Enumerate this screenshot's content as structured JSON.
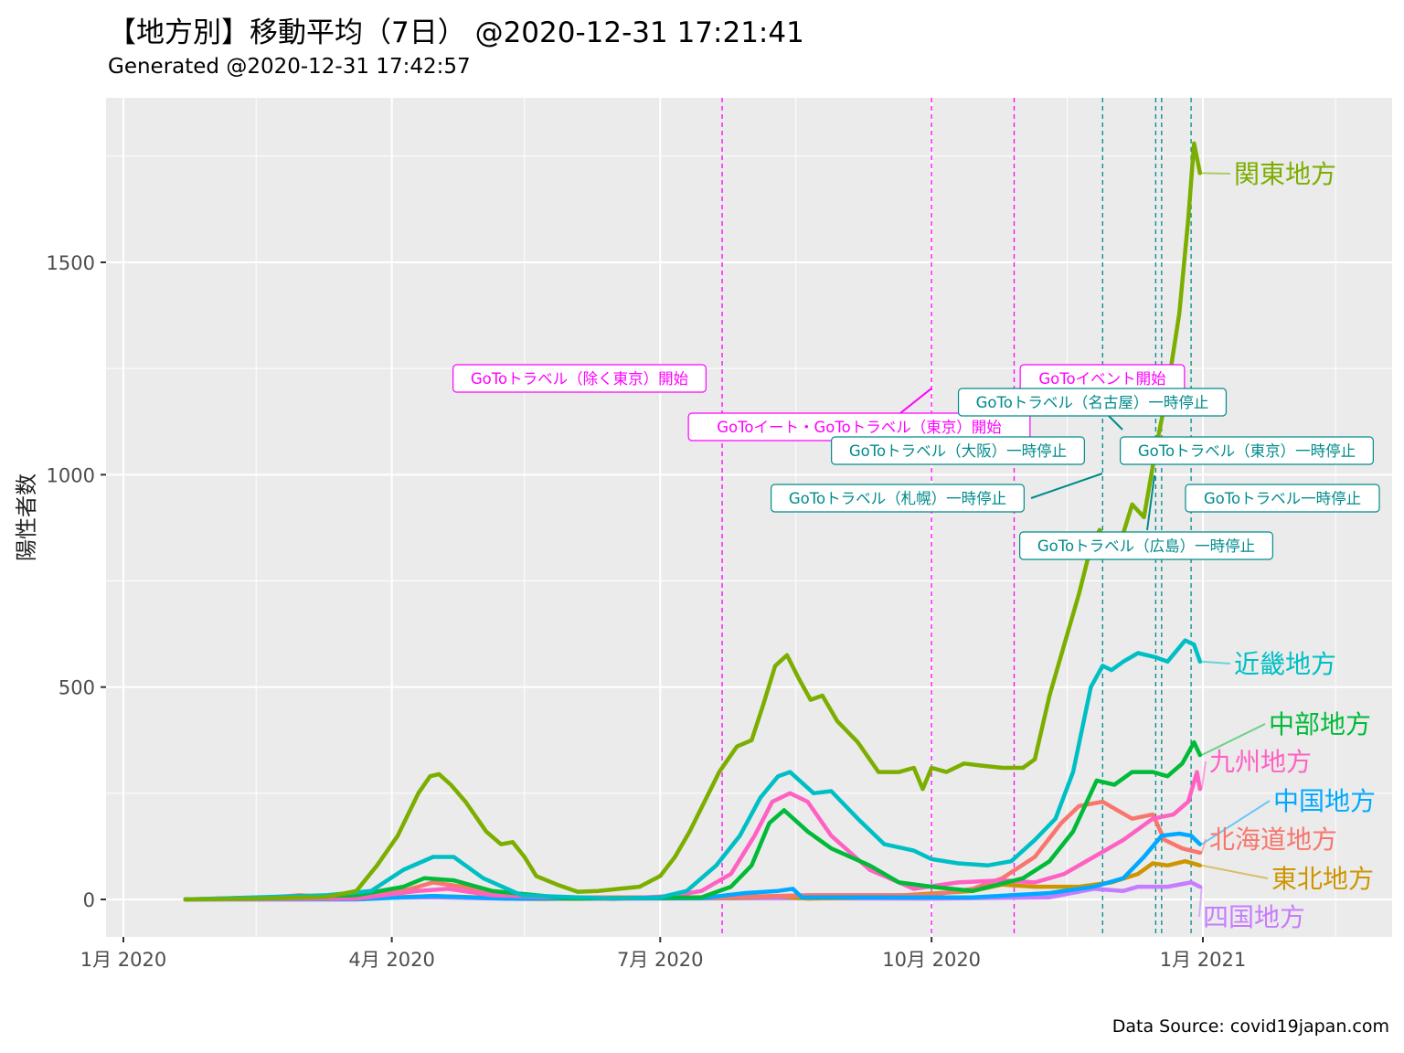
{
  "title": "【地方別】移動平均（7日） @2020-12-31 17:21:41",
  "subtitle": "Generated @2020-12-31 17:42:57",
  "caption": "Data Source: covid19japan.com",
  "chart_data": {
    "type": "line",
    "ylabel": "陽性者数",
    "xlabel": "",
    "ylim": [
      -90,
      1880
    ],
    "x_ticks": [
      {
        "date": "2020-01-01",
        "label": "1月 2020"
      },
      {
        "date": "2020-04-01",
        "label": "4月 2020"
      },
      {
        "date": "2020-07-01",
        "label": "7月 2020"
      },
      {
        "date": "2020-10-01",
        "label": "10月 2020"
      },
      {
        "date": "2021-01-01",
        "label": "1月 2021"
      }
    ],
    "y_ticks": [
      0,
      500,
      1000,
      1500
    ],
    "grid": true,
    "legend": "direct labels at line ends",
    "series": [
      {
        "name": "関東地方",
        "color": "#7CAE00",
        "points": [
          [
            "2020-01-22",
            0
          ],
          [
            "2020-02-15",
            2
          ],
          [
            "2020-03-10",
            6
          ],
          [
            "2020-03-20",
            20
          ],
          [
            "2020-03-27",
            80
          ],
          [
            "2020-04-03",
            150
          ],
          [
            "2020-04-10",
            250
          ],
          [
            "2020-04-14",
            290
          ],
          [
            "2020-04-17",
            295
          ],
          [
            "2020-04-21",
            270
          ],
          [
            "2020-04-26",
            230
          ],
          [
            "2020-05-03",
            160
          ],
          [
            "2020-05-08",
            130
          ],
          [
            "2020-05-12",
            135
          ],
          [
            "2020-05-16",
            100
          ],
          [
            "2020-05-20",
            55
          ],
          [
            "2020-05-27",
            35
          ],
          [
            "2020-06-03",
            18
          ],
          [
            "2020-06-10",
            20
          ],
          [
            "2020-06-17",
            25
          ],
          [
            "2020-06-24",
            30
          ],
          [
            "2020-07-01",
            55
          ],
          [
            "2020-07-06",
            100
          ],
          [
            "2020-07-11",
            160
          ],
          [
            "2020-07-16",
            230
          ],
          [
            "2020-07-21",
            300
          ],
          [
            "2020-07-27",
            360
          ],
          [
            "2020-08-01",
            375
          ],
          [
            "2020-08-05",
            460
          ],
          [
            "2020-08-09",
            550
          ],
          [
            "2020-08-13",
            575
          ],
          [
            "2020-08-17",
            520
          ],
          [
            "2020-08-21",
            470
          ],
          [
            "2020-08-25",
            480
          ],
          [
            "2020-08-30",
            420
          ],
          [
            "2020-09-06",
            370
          ],
          [
            "2020-09-13",
            300
          ],
          [
            "2020-09-20",
            300
          ],
          [
            "2020-09-25",
            310
          ],
          [
            "2020-09-28",
            260
          ],
          [
            "2020-10-01",
            310
          ],
          [
            "2020-10-06",
            300
          ],
          [
            "2020-10-12",
            320
          ],
          [
            "2020-10-18",
            315
          ],
          [
            "2020-10-25",
            310
          ],
          [
            "2020-11-01",
            310
          ],
          [
            "2020-11-05",
            330
          ],
          [
            "2020-11-10",
            480
          ],
          [
            "2020-11-15",
            600
          ],
          [
            "2020-11-20",
            720
          ],
          [
            "2020-11-24",
            830
          ],
          [
            "2020-11-27",
            870
          ],
          [
            "2020-11-30",
            820
          ],
          [
            "2020-12-04",
            840
          ],
          [
            "2020-12-08",
            930
          ],
          [
            "2020-12-12",
            900
          ],
          [
            "2020-12-16",
            1060
          ],
          [
            "2020-12-20",
            1200
          ],
          [
            "2020-12-24",
            1380
          ],
          [
            "2020-12-27",
            1600
          ],
          [
            "2020-12-29",
            1780
          ],
          [
            "2020-12-31",
            1710
          ]
        ]
      },
      {
        "name": "近畿地方",
        "color": "#00BFC4",
        "points": [
          [
            "2020-01-22",
            0
          ],
          [
            "2020-03-10",
            10
          ],
          [
            "2020-03-25",
            20
          ],
          [
            "2020-04-05",
            70
          ],
          [
            "2020-04-15",
            100
          ],
          [
            "2020-04-22",
            100
          ],
          [
            "2020-05-02",
            50
          ],
          [
            "2020-05-15",
            10
          ],
          [
            "2020-06-15",
            2
          ],
          [
            "2020-07-01",
            5
          ],
          [
            "2020-07-10",
            20
          ],
          [
            "2020-07-20",
            80
          ],
          [
            "2020-07-28",
            150
          ],
          [
            "2020-08-04",
            240
          ],
          [
            "2020-08-10",
            290
          ],
          [
            "2020-08-14",
            300
          ],
          [
            "2020-08-22",
            250
          ],
          [
            "2020-08-28",
            255
          ],
          [
            "2020-09-06",
            190
          ],
          [
            "2020-09-15",
            130
          ],
          [
            "2020-09-25",
            115
          ],
          [
            "2020-10-01",
            95
          ],
          [
            "2020-10-10",
            85
          ],
          [
            "2020-10-20",
            80
          ],
          [
            "2020-10-28",
            90
          ],
          [
            "2020-11-05",
            140
          ],
          [
            "2020-11-12",
            190
          ],
          [
            "2020-11-18",
            300
          ],
          [
            "2020-11-24",
            500
          ],
          [
            "2020-11-28",
            550
          ],
          [
            "2020-12-01",
            540
          ],
          [
            "2020-12-05",
            560
          ],
          [
            "2020-12-10",
            580
          ],
          [
            "2020-12-16",
            570
          ],
          [
            "2020-12-20",
            560
          ],
          [
            "2020-12-26",
            610
          ],
          [
            "2020-12-29",
            600
          ],
          [
            "2020-12-31",
            560
          ]
        ]
      },
      {
        "name": "中部地方",
        "color": "#00BA38",
        "points": [
          [
            "2020-01-22",
            0
          ],
          [
            "2020-03-20",
            10
          ],
          [
            "2020-04-05",
            30
          ],
          [
            "2020-04-12",
            50
          ],
          [
            "2020-04-22",
            45
          ],
          [
            "2020-05-05",
            20
          ],
          [
            "2020-06-01",
            2
          ],
          [
            "2020-07-15",
            5
          ],
          [
            "2020-07-25",
            30
          ],
          [
            "2020-08-01",
            80
          ],
          [
            "2020-08-07",
            180
          ],
          [
            "2020-08-12",
            210
          ],
          [
            "2020-08-20",
            160
          ],
          [
            "2020-08-28",
            120
          ],
          [
            "2020-09-10",
            80
          ],
          [
            "2020-09-20",
            40
          ],
          [
            "2020-10-01",
            30
          ],
          [
            "2020-10-15",
            20
          ],
          [
            "2020-11-01",
            50
          ],
          [
            "2020-11-10",
            90
          ],
          [
            "2020-11-18",
            160
          ],
          [
            "2020-11-26",
            280
          ],
          [
            "2020-12-02",
            270
          ],
          [
            "2020-12-08",
            300
          ],
          [
            "2020-12-15",
            300
          ],
          [
            "2020-12-20",
            290
          ],
          [
            "2020-12-25",
            320
          ],
          [
            "2020-12-29",
            370
          ],
          [
            "2020-12-31",
            340
          ]
        ]
      },
      {
        "name": "九州地方",
        "color": "#FF61C3",
        "points": [
          [
            "2020-01-22",
            0
          ],
          [
            "2020-03-20",
            2
          ],
          [
            "2020-04-10",
            20
          ],
          [
            "2020-04-20",
            25
          ],
          [
            "2020-05-05",
            10
          ],
          [
            "2020-06-15",
            1
          ],
          [
            "2020-07-05",
            8
          ],
          [
            "2020-07-15",
            20
          ],
          [
            "2020-07-25",
            60
          ],
          [
            "2020-08-02",
            150
          ],
          [
            "2020-08-08",
            230
          ],
          [
            "2020-08-14",
            250
          ],
          [
            "2020-08-20",
            230
          ],
          [
            "2020-08-28",
            150
          ],
          [
            "2020-09-10",
            70
          ],
          [
            "2020-09-25",
            25
          ],
          [
            "2020-10-10",
            40
          ],
          [
            "2020-10-25",
            45
          ],
          [
            "2020-11-05",
            40
          ],
          [
            "2020-11-15",
            60
          ],
          [
            "2020-11-25",
            100
          ],
          [
            "2020-12-05",
            140
          ],
          [
            "2020-12-15",
            190
          ],
          [
            "2020-12-22",
            200
          ],
          [
            "2020-12-27",
            230
          ],
          [
            "2020-12-30",
            300
          ],
          [
            "2020-12-31",
            260
          ]
        ]
      },
      {
        "name": "中国地方",
        "color": "#00A9FF",
        "points": [
          [
            "2020-01-22",
            0
          ],
          [
            "2020-03-20",
            0
          ],
          [
            "2020-04-15",
            8
          ],
          [
            "2020-05-10",
            2
          ],
          [
            "2020-07-15",
            3
          ],
          [
            "2020-07-30",
            15
          ],
          [
            "2020-08-10",
            20
          ],
          [
            "2020-08-15",
            25
          ],
          [
            "2020-08-18",
            5
          ],
          [
            "2020-09-15",
            5
          ],
          [
            "2020-10-15",
            5
          ],
          [
            "2020-11-10",
            15
          ],
          [
            "2020-11-25",
            30
          ],
          [
            "2020-12-05",
            50
          ],
          [
            "2020-12-12",
            100
          ],
          [
            "2020-12-18",
            150
          ],
          [
            "2020-12-24",
            155
          ],
          [
            "2020-12-28",
            150
          ],
          [
            "2020-12-31",
            130
          ]
        ]
      },
      {
        "name": "北海道地方",
        "color": "#F8766D",
        "points": [
          [
            "2020-01-22",
            0
          ],
          [
            "2020-02-20",
            5
          ],
          [
            "2020-03-01",
            10
          ],
          [
            "2020-03-10",
            5
          ],
          [
            "2020-04-05",
            20
          ],
          [
            "2020-04-15",
            40
          ],
          [
            "2020-04-25",
            30
          ],
          [
            "2020-05-10",
            10
          ],
          [
            "2020-06-01",
            5
          ],
          [
            "2020-07-20",
            5
          ],
          [
            "2020-08-20",
            10
          ],
          [
            "2020-09-30",
            10
          ],
          [
            "2020-10-15",
            25
          ],
          [
            "2020-10-25",
            50
          ],
          [
            "2020-11-05",
            100
          ],
          [
            "2020-11-14",
            180
          ],
          [
            "2020-11-20",
            220
          ],
          [
            "2020-11-28",
            230
          ],
          [
            "2020-12-03",
            210
          ],
          [
            "2020-12-08",
            190
          ],
          [
            "2020-12-15",
            200
          ],
          [
            "2020-12-19",
            140
          ],
          [
            "2020-12-25",
            120
          ],
          [
            "2020-12-31",
            110
          ]
        ]
      },
      {
        "name": "東北地方",
        "color": "#CD9600",
        "points": [
          [
            "2020-01-22",
            0
          ],
          [
            "2020-03-20",
            2
          ],
          [
            "2020-04-15",
            8
          ],
          [
            "2020-05-20",
            1
          ],
          [
            "2020-07-25",
            4
          ],
          [
            "2020-08-10",
            8
          ],
          [
            "2020-08-20",
            2
          ],
          [
            "2020-09-10",
            5
          ],
          [
            "2020-10-15",
            20
          ],
          [
            "2020-10-25",
            35
          ],
          [
            "2020-11-05",
            30
          ],
          [
            "2020-11-20",
            30
          ],
          [
            "2020-12-01",
            40
          ],
          [
            "2020-12-10",
            60
          ],
          [
            "2020-12-15",
            85
          ],
          [
            "2020-12-20",
            80
          ],
          [
            "2020-12-26",
            90
          ],
          [
            "2020-12-31",
            80
          ]
        ]
      },
      {
        "name": "四国地方",
        "color": "#C77CFF",
        "points": [
          [
            "2020-01-22",
            0
          ],
          [
            "2020-04-15",
            5
          ],
          [
            "2020-05-15",
            1
          ],
          [
            "2020-08-10",
            3
          ],
          [
            "2020-10-01",
            2
          ],
          [
            "2020-11-10",
            5
          ],
          [
            "2020-11-25",
            25
          ],
          [
            "2020-12-05",
            20
          ],
          [
            "2020-12-10",
            30
          ],
          [
            "2020-12-20",
            30
          ],
          [
            "2020-12-28",
            40
          ],
          [
            "2020-12-31",
            30
          ]
        ]
      }
    ],
    "events": [
      {
        "date": "2020-07-22",
        "label": "GoToトラベル（除く東京）開始",
        "color": "#FF00FF"
      },
      {
        "date": "2020-10-01",
        "label": "GoToイート・GoToトラベル（東京）開始",
        "color": "#FF00FF"
      },
      {
        "date": "2020-10-29",
        "label": "GoToイベント開始",
        "color": "#FF00FF"
      },
      {
        "date": "2020-11-28",
        "label": "GoToトラベル（札幌）一時停止",
        "color": "#008B8B"
      },
      {
        "date": "2020-11-28",
        "label": "GoToトラベル（大阪）一時停止",
        "color": "#008B8B"
      },
      {
        "date": "2020-12-16",
        "label": "GoToトラベル（名古屋）一時停止",
        "color": "#008B8B"
      },
      {
        "date": "2020-12-16",
        "label": "GoToトラベル（広島）一時停止",
        "color": "#008B8B"
      },
      {
        "date": "2020-12-18",
        "label": "GoToトラベル（東京）一時停止",
        "color": "#008B8B"
      },
      {
        "date": "2020-12-28",
        "label": "GoToトラベル一時停止",
        "color": "#008B8B"
      }
    ]
  }
}
